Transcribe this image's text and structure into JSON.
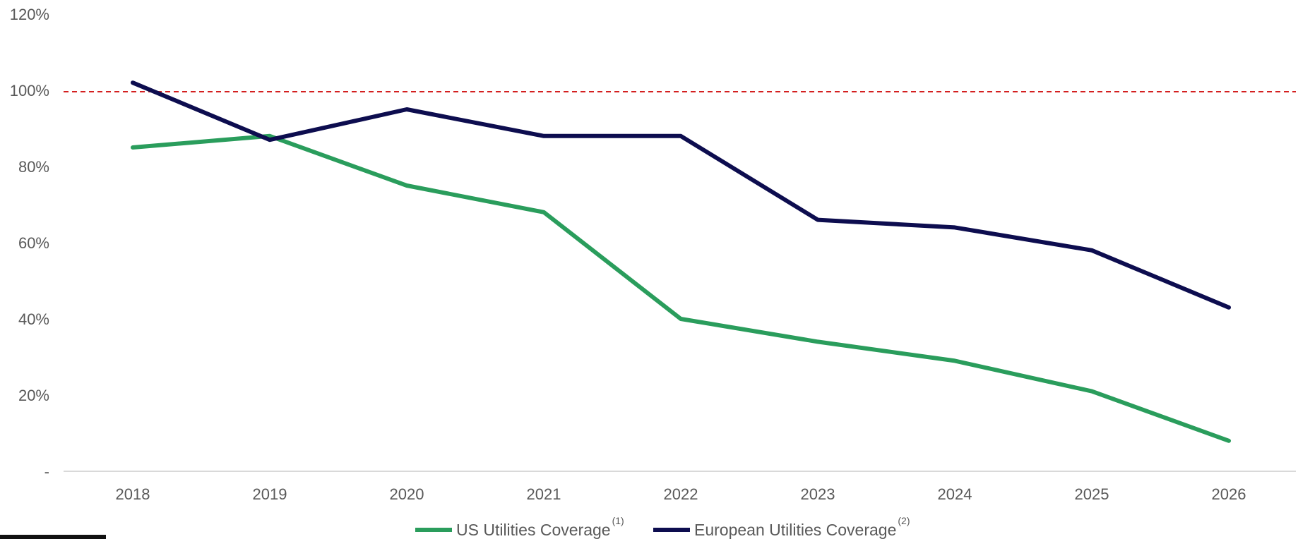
{
  "chart_data": {
    "type": "line",
    "categories": [
      "2018",
      "2019",
      "2020",
      "2021",
      "2022",
      "2023",
      "2024",
      "2025",
      "2026"
    ],
    "series": [
      {
        "name": "US Utilities Coverage",
        "note": "(1)",
        "color": "#2a9d5c",
        "values": [
          85,
          88,
          75,
          68,
          40,
          34,
          29,
          21,
          8
        ]
      },
      {
        "name": "European Utilities Coverage",
        "note": "(2)",
        "color": "#0d0d4f",
        "values": [
          102,
          87,
          95,
          88,
          88,
          66,
          64,
          58,
          43
        ]
      }
    ],
    "reference_line": {
      "value": 100,
      "color": "#d42020",
      "style": "dashed"
    },
    "y_ticks": [
      "-",
      "20%",
      "40%",
      "60%",
      "80%",
      "100%",
      "120%"
    ],
    "ylim": [
      0,
      120
    ],
    "grid": false,
    "legend_position": "bottom-center"
  }
}
